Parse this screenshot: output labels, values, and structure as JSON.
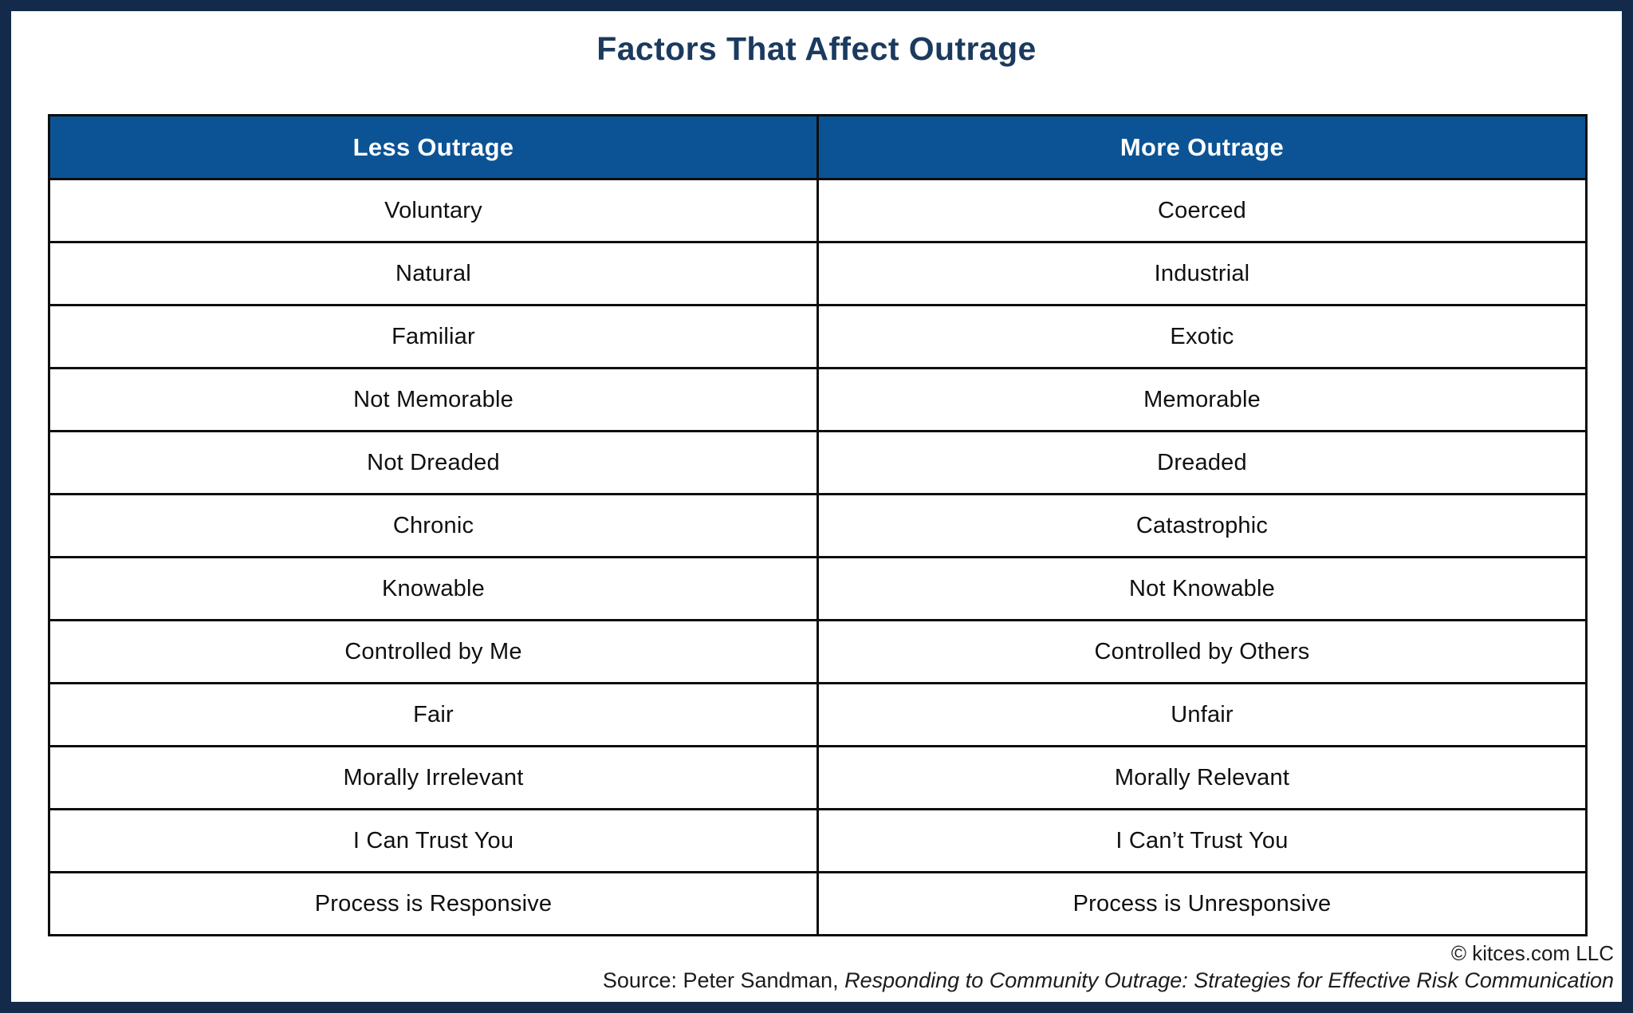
{
  "page": {
    "title": "Factors That Affect Outrage"
  },
  "colors": {
    "frame_navy": "#132a4b",
    "header_blue": "#0b5394",
    "title_navy": "#1b3a5e",
    "cell_border_black": "#0e0e0e",
    "header_text": "#ffffff",
    "body_text": "#101010"
  },
  "chart_data": {
    "type": "table",
    "title": "Factors That Affect Outrage",
    "columns": [
      "Less Outrage",
      "More Outrage"
    ],
    "rows": [
      [
        "Voluntary",
        "Coerced"
      ],
      [
        "Natural",
        "Industrial"
      ],
      [
        "Familiar",
        "Exotic"
      ],
      [
        "Not Memorable",
        "Memorable"
      ],
      [
        "Not Dreaded",
        "Dreaded"
      ],
      [
        "Chronic",
        "Catastrophic"
      ],
      [
        "Knowable",
        "Not Knowable"
      ],
      [
        "Controlled by Me",
        "Controlled by Others"
      ],
      [
        "Fair",
        "Unfair"
      ],
      [
        "Morally Irrelevant",
        "Morally Relevant"
      ],
      [
        "I Can Trust You",
        "I Can’t Trust You"
      ],
      [
        "Process is Responsive",
        "Process is Unresponsive"
      ]
    ],
    "legend": "none",
    "grid": "table borders on"
  },
  "footer": {
    "copyright": "© kitces.com LLC",
    "source_prefix": "Source: Peter Sandman, ",
    "source_title": "Responding to Community Outrage: Strategies for Effective Risk Communication"
  }
}
